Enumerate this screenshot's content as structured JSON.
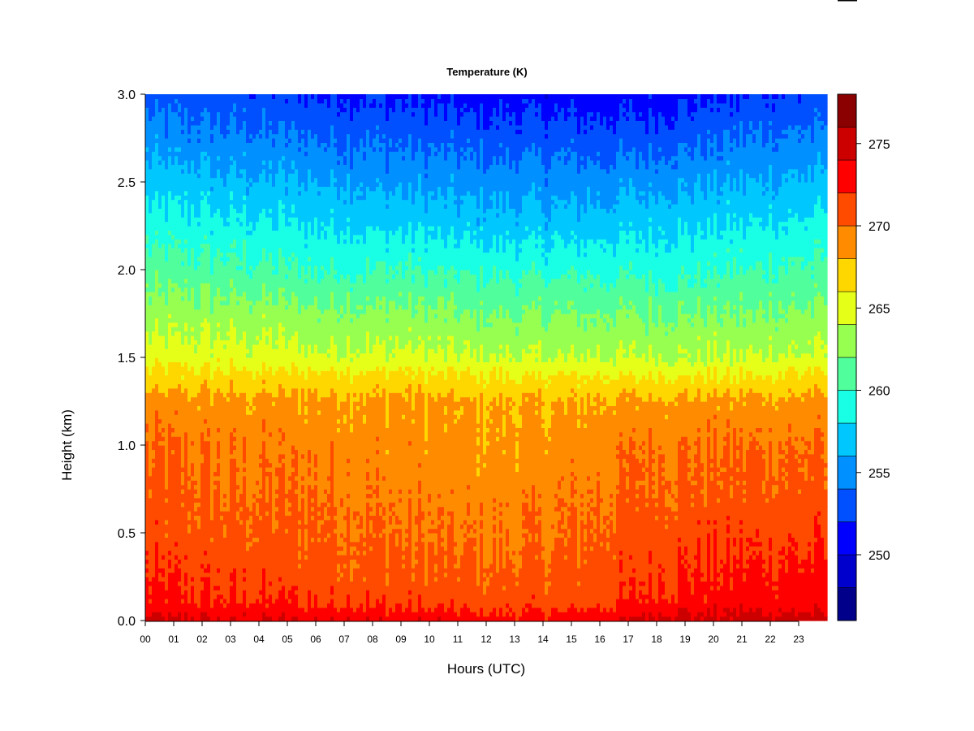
{
  "chart_data": {
    "type": "heatmap",
    "title": "Temperature (K)",
    "xlabel": "Hours (UTC)",
    "ylabel": "Height (km)",
    "x_tick_labels": [
      "00",
      "01",
      "02",
      "03",
      "04",
      "05",
      "06",
      "07",
      "08",
      "09",
      "10",
      "11",
      "12",
      "13",
      "14",
      "15",
      "16",
      "17",
      "18",
      "19",
      "20",
      "21",
      "22",
      "23"
    ],
    "x_range_hours": [
      0,
      24
    ],
    "y_range_km": [
      0,
      3.0
    ],
    "y_tick_labels": [
      "0.0",
      "0.5",
      "1.0",
      "1.5",
      "2.0",
      "2.5",
      "3.0"
    ],
    "y_tick_values": [
      0,
      0.5,
      1.0,
      1.5,
      2.0,
      2.5,
      3.0
    ],
    "colorbar": {
      "range": [
        246,
        278
      ],
      "tick_values": [
        250,
        255,
        260,
        265,
        270,
        275
      ],
      "tick_labels": [
        "250",
        "255",
        "260",
        "265",
        "270",
        "275"
      ],
      "levels": [
        {
          "min": 246,
          "max": 248,
          "color": "#00008b"
        },
        {
          "min": 248,
          "max": 250,
          "color": "#0000cd"
        },
        {
          "min": 250,
          "max": 252,
          "color": "#0000ff"
        },
        {
          "min": 252,
          "max": 254,
          "color": "#0050ff"
        },
        {
          "min": 254,
          "max": 256,
          "color": "#0090ff"
        },
        {
          "min": 256,
          "max": 258,
          "color": "#00c8ff"
        },
        {
          "min": 258,
          "max": 260,
          "color": "#19ffe6"
        },
        {
          "min": 260,
          "max": 262,
          "color": "#50ff9b"
        },
        {
          "min": 262,
          "max": 264,
          "color": "#96ff50"
        },
        {
          "min": 264,
          "max": 266,
          "color": "#e6ff19"
        },
        {
          "min": 266,
          "max": 268,
          "color": "#ffd700"
        },
        {
          "min": 268,
          "max": 270,
          "color": "#ff8c00"
        },
        {
          "min": 270,
          "max": 272,
          "color": "#ff4b00"
        },
        {
          "min": 272,
          "max": 274,
          "color": "#ff0000"
        },
        {
          "min": 274,
          "max": 276,
          "color": "#cd0000"
        },
        {
          "min": 276,
          "max": 278,
          "color": "#8b0000"
        }
      ]
    },
    "grid": false,
    "temperature_profile_K": {
      "heights_km": [
        0.0,
        0.05,
        0.1,
        0.25,
        0.5,
        0.75,
        1.0,
        1.25,
        1.4,
        1.5,
        1.75,
        2.0,
        2.25,
        2.5,
        2.75,
        3.0
      ],
      "columns": [
        {
          "hour": 0,
          "temps": [
            275,
            273.5,
            272.5,
            272,
            271,
            270.5,
            270,
            269,
            266.5,
            265,
            263,
            261,
            259,
            257,
            255,
            253
          ]
        },
        {
          "hour": 3,
          "temps": [
            274,
            273,
            272,
            271.5,
            270.5,
            270,
            269.5,
            268.5,
            266.5,
            265,
            263,
            260.5,
            258.5,
            256.5,
            254.5,
            252.5
          ]
        },
        {
          "hour": 6,
          "temps": [
            274,
            273,
            272,
            271,
            270.5,
            270,
            269.5,
            268.5,
            266.5,
            264.5,
            262.5,
            260,
            258,
            256,
            254,
            252
          ]
        },
        {
          "hour": 9,
          "temps": [
            274,
            272.5,
            271.5,
            270.5,
            270,
            269.5,
            269,
            268.5,
            266.5,
            264.5,
            262.5,
            260,
            257.5,
            255.5,
            253.5,
            251.5
          ]
        },
        {
          "hour": 12,
          "temps": [
            273,
            272,
            271,
            270.5,
            269.5,
            269,
            268.5,
            268,
            266,
            264,
            262,
            259.5,
            257,
            255,
            253,
            251
          ]
        },
        {
          "hour": 15,
          "temps": [
            273,
            272,
            271,
            270.5,
            270,
            269.5,
            269,
            268,
            266,
            264,
            262,
            259.5,
            257,
            255,
            253,
            251
          ]
        },
        {
          "hour": 18,
          "temps": [
            275,
            273.5,
            272.5,
            272,
            271,
            270.5,
            270,
            268.5,
            266,
            264,
            262,
            259.5,
            257.5,
            255.5,
            253,
            251
          ]
        },
        {
          "hour": 21,
          "temps": [
            275,
            274,
            273,
            272.5,
            271.5,
            270.5,
            270,
            268.5,
            266,
            264,
            262,
            260,
            258,
            256,
            254,
            252
          ]
        },
        {
          "hour": 24,
          "temps": [
            275,
            274,
            273,
            272.5,
            271.5,
            270.5,
            270,
            268.5,
            266.5,
            264.5,
            262.5,
            260.5,
            258.5,
            256.5,
            254.5,
            252.5
          ]
        }
      ]
    }
  }
}
